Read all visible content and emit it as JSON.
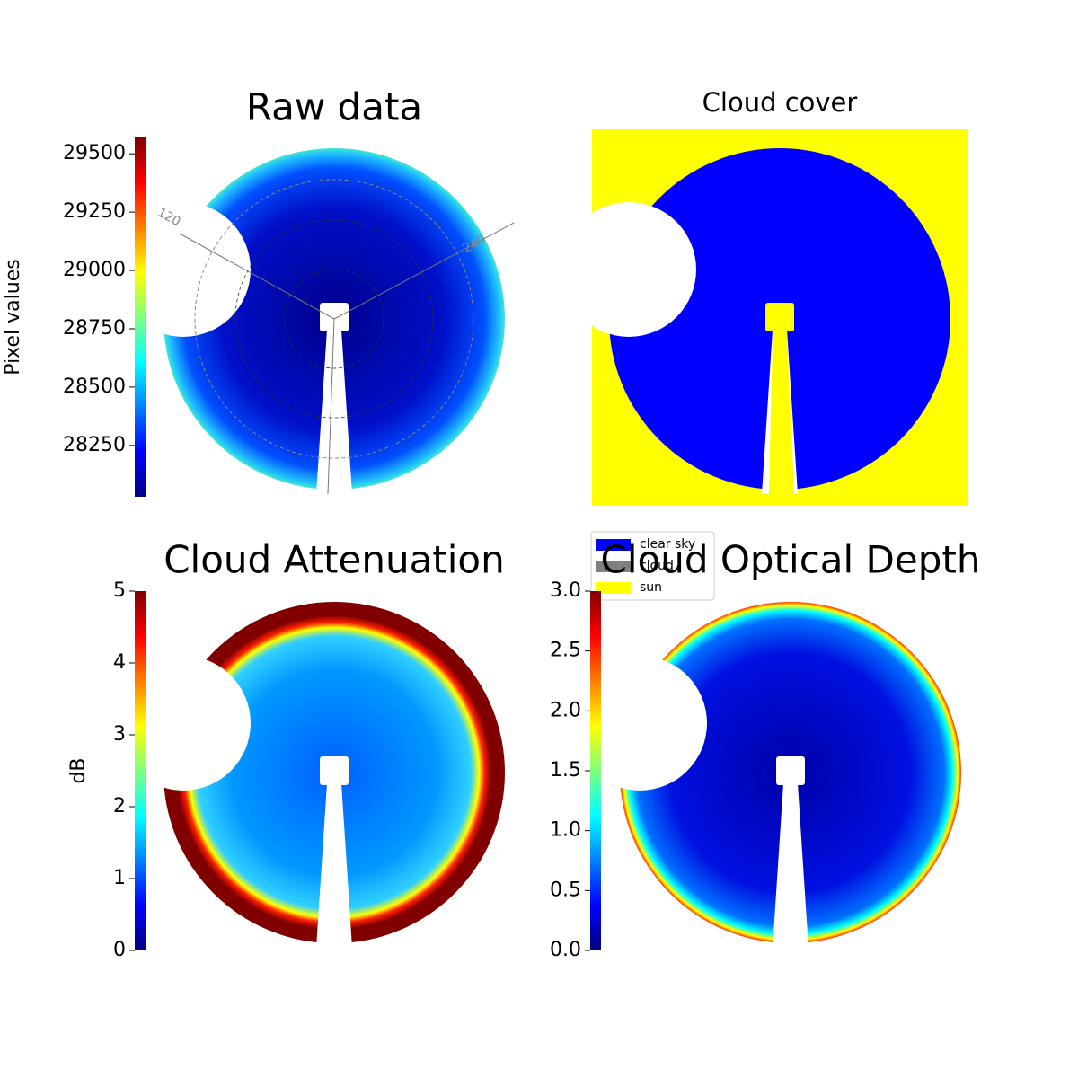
{
  "chart_data": [
    {
      "type": "image",
      "title": "Raw data",
      "colorbar_label": "Pixel values",
      "colormap": "jet",
      "clim": [
        28030,
        29570
      ],
      "cticks": [
        28250,
        28500,
        28750,
        29000,
        29250,
        29500
      ],
      "polar_labels": [
        "120",
        "240"
      ]
    },
    {
      "type": "classification",
      "title": "Cloud cover",
      "legend": [
        {
          "name": "clear sky",
          "color": "#0000ff"
        },
        {
          "name": "cloud",
          "color": "#808080"
        },
        {
          "name": "sun",
          "color": "#ffff00"
        }
      ]
    },
    {
      "type": "image",
      "title": "Cloud Attenuation",
      "colorbar_label": "dB",
      "colormap": "jet",
      "clim": [
        0,
        5
      ],
      "cticks": [
        0,
        1,
        2,
        3,
        4,
        5
      ]
    },
    {
      "type": "image",
      "title": "Cloud Optical Depth",
      "colormap": "jet",
      "clim": [
        0,
        3
      ],
      "cticks": [
        {
          "value": 0,
          "label": "0.0"
        },
        0.5,
        {
          "value": 1,
          "label": "1.0"
        },
        1.5,
        {
          "value": 2,
          "label": "2.0"
        },
        2.5,
        {
          "value": 3,
          "label": "3.0"
        }
      ]
    }
  ]
}
